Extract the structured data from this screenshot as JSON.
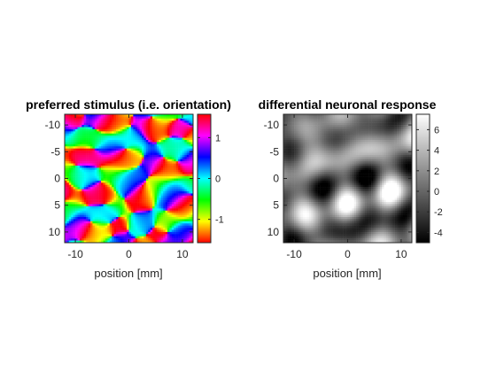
{
  "chart_data": [
    {
      "type": "heatmap",
      "title": "preferred stimulus (i.e. orientation)",
      "xlabel": "position [mm]",
      "ylabel": "",
      "xlim": [
        -12,
        12
      ],
      "ylim": [
        -12,
        12
      ],
      "x_reversed": false,
      "y_reversed": true,
      "x_ticks": [
        -10,
        0,
        10
      ],
      "x_tick_labels": [
        "-10",
        "0",
        "10"
      ],
      "y_ticks": [
        -10,
        -5,
        0,
        5,
        10
      ],
      "y_tick_labels": [
        "-10",
        "-5",
        "0",
        "5",
        "10"
      ],
      "colormap": "hsv",
      "colorbar": {
        "limits": [
          -1.5708,
          1.5708
        ],
        "ticks": [
          1,
          0,
          -1
        ],
        "tick_labels": [
          "1",
          "0",
          "-1"
        ],
        "colors": [
          "#ff0000",
          "#ffff00",
          "#00ff00",
          "#00ffff",
          "#0000ff",
          "#ff00ff",
          "#ff0000"
        ]
      },
      "grid": false,
      "legend": "none"
    },
    {
      "type": "heatmap",
      "title": "differential neuronal response",
      "xlabel": "position [mm]",
      "ylabel": "",
      "xlim": [
        -12,
        12
      ],
      "ylim": [
        -12,
        12
      ],
      "x_reversed": false,
      "y_reversed": true,
      "x_ticks": [
        -10,
        0,
        10
      ],
      "x_tick_labels": [
        "-10",
        "0",
        "10"
      ],
      "y_ticks": [
        -10,
        -5,
        0,
        5,
        10
      ],
      "y_tick_labels": [
        "-10",
        "-5",
        "0",
        "5",
        "10"
      ],
      "colormap": "gray",
      "colorbar": {
        "limits": [
          -5,
          7.5
        ],
        "ticks": [
          6,
          4,
          2,
          0,
          -2,
          -4
        ],
        "tick_labels": [
          "6",
          "4",
          "2",
          "0",
          "-2",
          "-4"
        ],
        "colors": [
          "#000000",
          "#ffffff"
        ]
      },
      "grid": false,
      "legend": "none"
    }
  ]
}
